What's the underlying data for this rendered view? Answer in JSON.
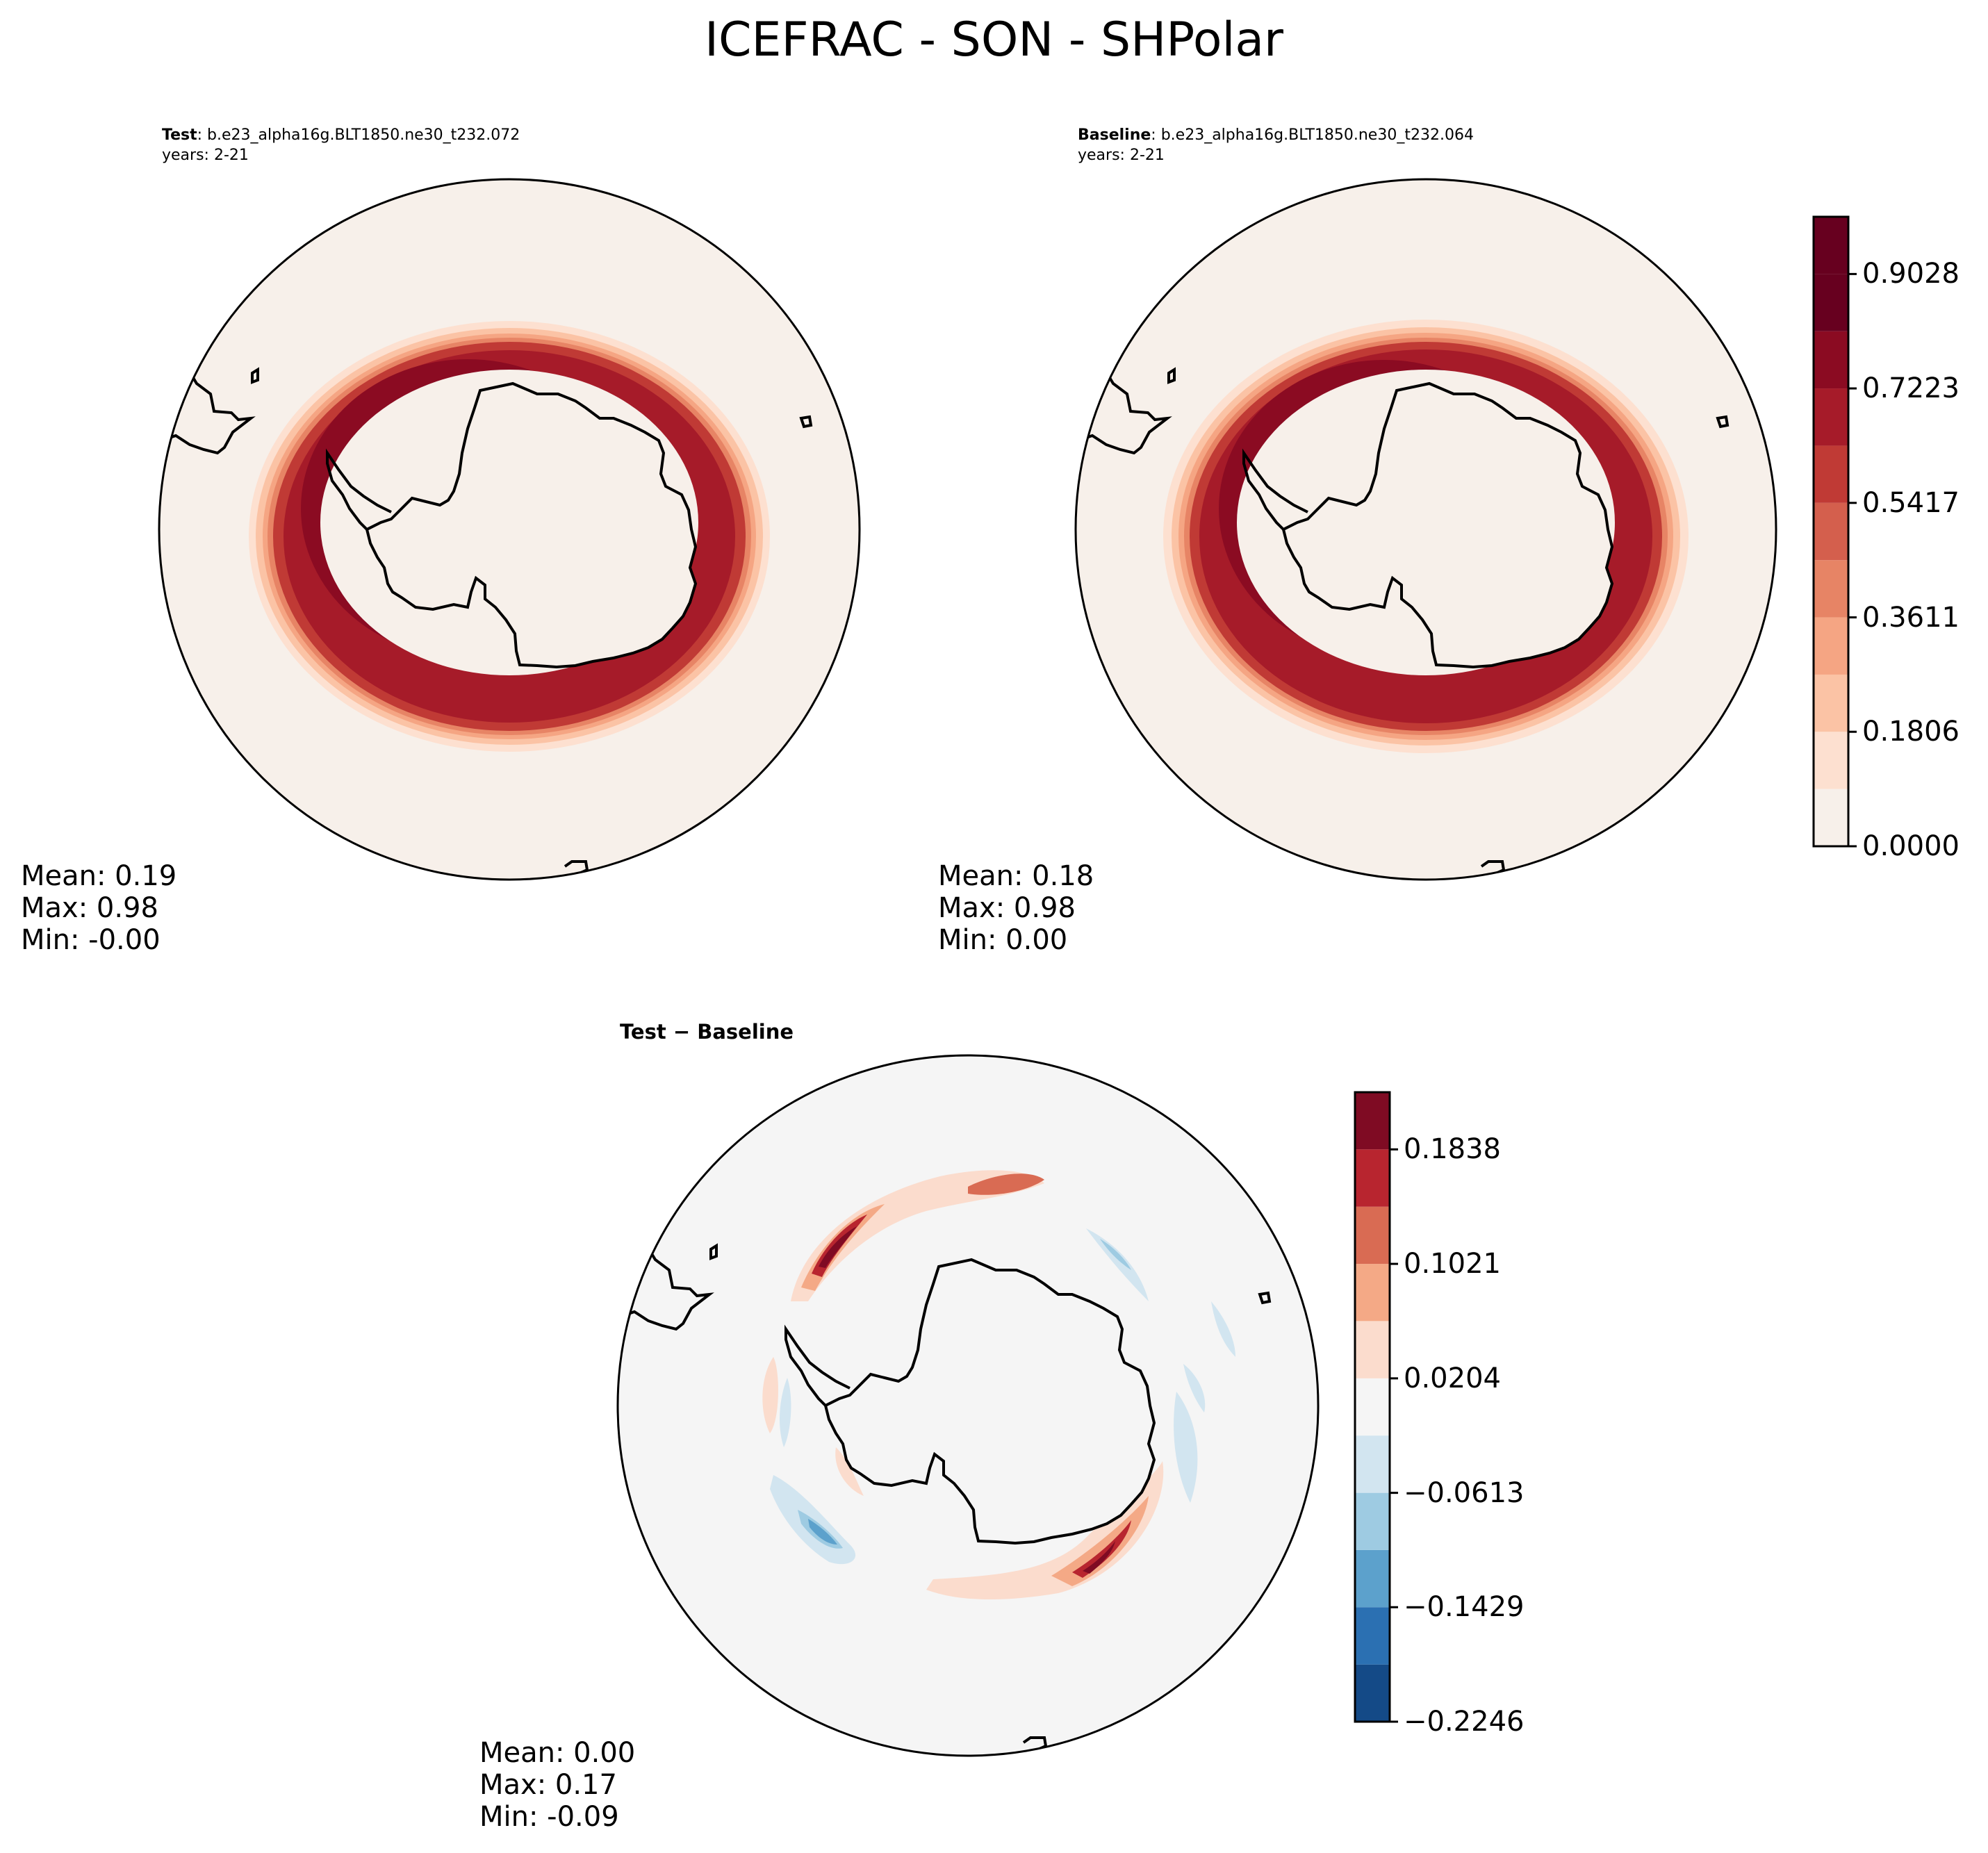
{
  "figure": {
    "title": "ICEFRAC - SON - SHPolar"
  },
  "panels": {
    "test": {
      "label_bold": "Test",
      "label_rest": ": b.e23_alpha16g.BLT1850.ne30_t232.072",
      "years": "years: 2-21",
      "stats": {
        "mean": "Mean:  0.19",
        "max": "Max:  0.98",
        "min": "Min: -0.00"
      }
    },
    "baseline": {
      "label_bold": "Baseline",
      "label_rest": ": b.e23_alpha16g.BLT1850.ne30_t232.064",
      "years": "years: 2-21",
      "stats": {
        "mean": "Mean:  0.18",
        "max": "Max:  0.98",
        "min": "Min:  0.00"
      }
    },
    "diff": {
      "title": "Test − Baseline",
      "stats": {
        "mean": "Mean:  0.00",
        "max": "Max:  0.17",
        "min": "Min: -0.09"
      }
    }
  },
  "colorbars": {
    "icefrac": {
      "ticks": [
        "0.0000",
        "0.1806",
        "0.3611",
        "0.5417",
        "0.7223",
        "0.9028"
      ],
      "tick_values": [
        0.0,
        0.1806,
        0.3611,
        0.5417,
        0.7223,
        0.9028
      ],
      "levels": [
        0.0,
        0.0903,
        0.1806,
        0.2708,
        0.3611,
        0.4514,
        0.5417,
        0.632,
        0.7223,
        0.8125,
        0.9028,
        0.9931
      ],
      "colors": [
        "#f7f0ea",
        "#fde0d0",
        "#fbc3a5",
        "#f5a583",
        "#e78465",
        "#d45f4d",
        "#c03a35",
        "#a61b29",
        "#8b0b22",
        "#67001f",
        "#67001f"
      ]
    },
    "diff": {
      "ticks": [
        "−0.2246",
        "−0.1429",
        "−0.0613",
        "0.0204",
        "0.1021",
        "0.1838"
      ],
      "tick_values": [
        -0.2246,
        -0.1429,
        -0.0613,
        0.0204,
        0.1021,
        0.1838
      ],
      "levels": [
        -0.2246,
        -0.1838,
        -0.1429,
        -0.1021,
        -0.0613,
        -0.0204,
        0.0204,
        0.0613,
        0.1021,
        0.1429,
        0.1838,
        0.2246
      ],
      "colors": [
        "#144a87",
        "#2b70b2",
        "#5ca1cc",
        "#9ecbe2",
        "#d2e5f0",
        "#f5f5f5",
        "#fbdccd",
        "#f4a986",
        "#d96b53",
        "#b8252f",
        "#7f0b23"
      ]
    }
  },
  "colors": {
    "land": "#f7f0ea",
    "ocean_background": "#f7f0ea",
    "diff_background": "#f5f5f5"
  },
  "chart_data": {
    "type": "heatmap",
    "variable": "ICEFRAC",
    "season": "SON",
    "region": "SHPolar",
    "panels": [
      {
        "name": "Test",
        "case": "b.e23_alpha16g.BLT1850.ne30_t232.072",
        "years": "2-21",
        "mean": 0.19,
        "max": 0.98,
        "min": -0.0
      },
      {
        "name": "Baseline",
        "case": "b.e23_alpha16g.BLT1850.ne30_t232.064",
        "years": "2-21",
        "mean": 0.18,
        "max": 0.98,
        "min": 0.0
      },
      {
        "name": "Test - Baseline",
        "mean": 0.0,
        "max": 0.17,
        "min": -0.09
      }
    ]
  }
}
